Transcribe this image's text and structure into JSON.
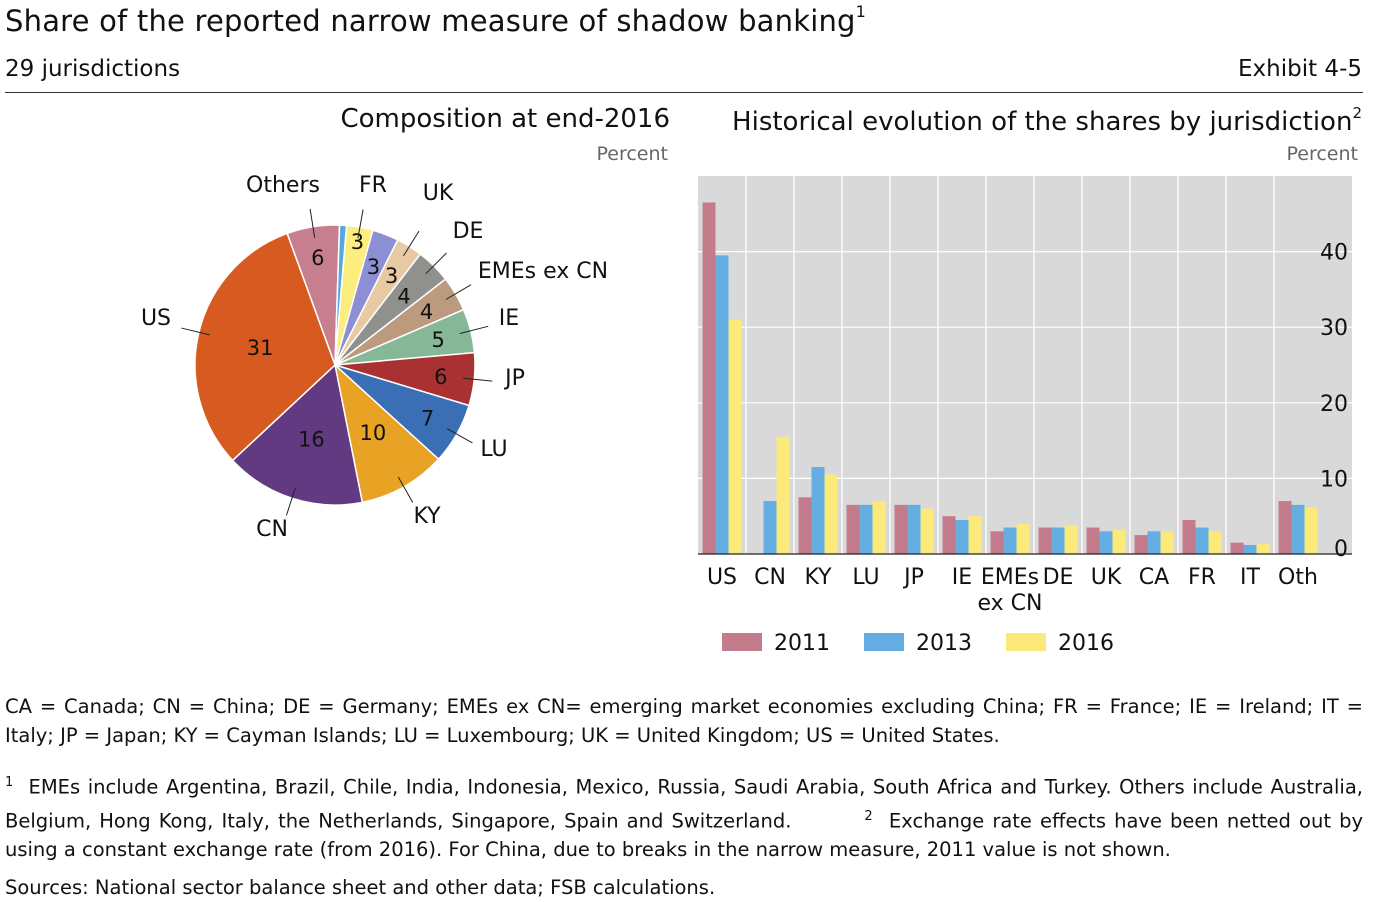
{
  "header": {
    "title": "Share of the reported narrow measure of shadow banking",
    "title_note": "1",
    "subtitle": "29 jurisdictions",
    "exhibit": "Exhibit 4-5"
  },
  "left_panel": {
    "title": "Composition at end-2016",
    "unit": "Percent"
  },
  "right_panel": {
    "title": "Historical evolution of the shares by jurisdiction",
    "title_note": "2",
    "unit": "Percent"
  },
  "colors": {
    "bar_2011": "#c47b8b",
    "bar_2013": "#65aee3",
    "bar_2016": "#fbe97a",
    "plot_bg": "#d9d9d9"
  },
  "chart_data": [
    {
      "type": "pie",
      "title": "Composition at end-2016",
      "unit": "Percent",
      "slices": [
        {
          "label": "Others",
          "value": 6,
          "color": "#c77f8f"
        },
        {
          "label": "",
          "value": 0.8,
          "color": "#5aa7dc"
        },
        {
          "label": "FR",
          "value": 3,
          "color": "#fbee7e"
        },
        {
          "label": "",
          "value": 3,
          "color": "#8c8fd4"
        },
        {
          "label": "UK",
          "value": 3,
          "color": "#e7c9a3"
        },
        {
          "label": "DE",
          "value": 4,
          "color": "#8f918c"
        },
        {
          "label": "EMEs ex CN",
          "value": 4,
          "color": "#bc9a7e"
        },
        {
          "label": "IE",
          "value": 5,
          "color": "#86b897"
        },
        {
          "label": "JP",
          "value": 6,
          "color": "#a93131"
        },
        {
          "label": "LU",
          "value": 7,
          "color": "#3a6fb5"
        },
        {
          "label": "KY",
          "value": 10,
          "color": "#e8a325"
        },
        {
          "label": "CN",
          "value": 16,
          "color": "#623a82"
        },
        {
          "label": "US",
          "value": 31,
          "color": "#d75b21"
        }
      ]
    },
    {
      "type": "bar",
      "title": "Historical evolution of the shares by jurisdiction",
      "unit": "Percent",
      "categories": [
        "US",
        "CN",
        "KY",
        "LU",
        "JP",
        "IE",
        "EMEs ex CN",
        "DE",
        "UK",
        "CA",
        "FR",
        "IT",
        "Oth"
      ],
      "series": [
        {
          "name": "2011",
          "values": [
            46.5,
            null,
            7.5,
            6.5,
            6.5,
            5,
            3,
            3.5,
            3.5,
            2.5,
            4.5,
            1.5,
            7
          ]
        },
        {
          "name": "2013",
          "values": [
            39.5,
            7,
            11.5,
            6.5,
            6.5,
            4.5,
            3.5,
            3.5,
            3,
            3,
            3.5,
            1.2,
            6.5
          ]
        },
        {
          "name": "2016",
          "values": [
            31,
            15.5,
            10.5,
            7,
            6,
            5,
            4,
            3.8,
            3.2,
            3,
            3,
            1.3,
            6.2
          ]
        }
      ],
      "yticks": [
        0,
        10,
        20,
        30,
        40
      ],
      "ylim": [
        0,
        50
      ],
      "grid": true,
      "legend": "bottom"
    }
  ],
  "footnotes": {
    "abbrev": "CA = Canada; CN = China; DE = Germany; EMEs ex CN= emerging market economies excluding China; FR = France; IE = Ireland; IT = Italy; JP = Japan; KY = Cayman Islands; LU = Luxembourg; UK = United Kingdom; US = United States.",
    "note1_mark": "1",
    "note1": "EMEs include Argentina, Brazil, Chile, India, Indonesia, Mexico, Russia, Saudi Arabia, South Africa and Turkey. Others include Australia, Belgium, Hong Kong, Italy, the Netherlands, Singapore, Spain and Switzerland.",
    "note2_mark": "2",
    "note2": "Exchange rate effects have been netted out by using a constant exchange rate (from 2016). For China, due to breaks in the narrow measure, 2011 value is not shown.",
    "sources": "Sources: National sector balance sheet and other data; FSB calculations."
  }
}
